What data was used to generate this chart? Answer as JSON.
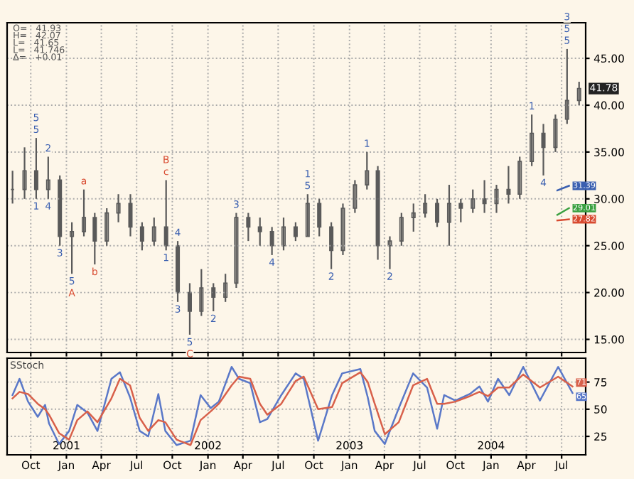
{
  "chart_data": [
    {
      "type": "candlestick",
      "color": "#5a5a5a",
      "grid": true,
      "tick_labels": "y",
      "xlim": [
        "2000-08-01",
        "2004-09-01"
      ],
      "ylim": [
        13.6,
        48.8
      ],
      "yticks": [
        {
          "value": 15,
          "label": "15.00"
        },
        {
          "value": 20,
          "label": "20.00"
        },
        {
          "value": 25,
          "label": "25.00"
        },
        {
          "value": 30,
          "label": "30.00"
        },
        {
          "value": 35,
          "label": "35.00"
        },
        {
          "value": 40,
          "label": "40.00"
        },
        {
          "value": 45,
          "label": "45.00"
        }
      ],
      "xticks": [
        {
          "value": "2000-10-01",
          "label": null
        },
        {
          "value": "2001-01-01",
          "label": null
        },
        {
          "value": "2001-04-01",
          "label": null
        },
        {
          "value": "2001-07-01",
          "label": null
        },
        {
          "value": "2001-10-01",
          "label": null
        },
        {
          "value": "2002-01-01",
          "label": null
        },
        {
          "value": "2002-04-01",
          "label": null
        },
        {
          "value": "2002-07-01",
          "label": null
        },
        {
          "value": "2002-10-01",
          "label": null
        },
        {
          "value": "2003-01-01",
          "label": null
        },
        {
          "value": "2003-04-01",
          "label": null
        },
        {
          "value": "2003-07-01",
          "label": null
        },
        {
          "value": "2003-10-01",
          "label": null
        },
        {
          "value": "2004-01-01",
          "label": null
        },
        {
          "value": "2004-04-01",
          "label": null
        },
        {
          "value": "2004-07-01",
          "label": null
        }
      ],
      "x": [
        "2000-08-15",
        "2000-09-15",
        "2000-10-15",
        "2000-11-15",
        "2000-12-15",
        "2001-01-15",
        "2001-02-15",
        "2001-03-15",
        "2001-04-15",
        "2001-05-15",
        "2001-06-15",
        "2001-07-15",
        "2001-08-15",
        "2001-09-15",
        "2001-10-15",
        "2001-11-15",
        "2001-12-15",
        "2002-01-15",
        "2002-02-15",
        "2002-03-15",
        "2002-04-15",
        "2002-05-15",
        "2002-06-15",
        "2002-07-15",
        "2002-08-15",
        "2002-09-15",
        "2002-10-15",
        "2002-11-15",
        "2002-12-15",
        "2003-01-15",
        "2003-02-15",
        "2003-03-15",
        "2003-04-15",
        "2003-05-15",
        "2003-06-15",
        "2003-07-15",
        "2003-08-15",
        "2003-09-15",
        "2003-10-15",
        "2003-11-15",
        "2003-12-15",
        "2004-01-15",
        "2004-02-15",
        "2004-03-15",
        "2004-04-15",
        "2004-05-15",
        "2004-06-15",
        "2004-07-15",
        "2004-08-15"
      ],
      "ohlc": [
        [
          31,
          33,
          29.5,
          31
        ],
        [
          31,
          35.5,
          30,
          33
        ],
        [
          33,
          36.5,
          30,
          31
        ],
        [
          31,
          34.5,
          30,
          32
        ],
        [
          32,
          32.5,
          25,
          26
        ],
        [
          26,
          27.5,
          22,
          26.5
        ],
        [
          26.5,
          31,
          26,
          28
        ],
        [
          28,
          28.5,
          23,
          25.5
        ],
        [
          25.5,
          29,
          25,
          28.5
        ],
        [
          28.5,
          30.5,
          27.5,
          29.5
        ],
        [
          29.5,
          30.5,
          26,
          27
        ],
        [
          27,
          27.5,
          24.5,
          25.5
        ],
        [
          25.5,
          28,
          25,
          27
        ],
        [
          27,
          32,
          24.5,
          25
        ],
        [
          25,
          25.5,
          19,
          20
        ],
        [
          20,
          21,
          15.5,
          18
        ],
        [
          18,
          22.5,
          17.5,
          20.5
        ],
        [
          20.5,
          21,
          18,
          19.5
        ],
        [
          19.5,
          22,
          19,
          21
        ],
        [
          21,
          28.5,
          20.5,
          28
        ],
        [
          28,
          28.5,
          25.5,
          27
        ],
        [
          27,
          28,
          25,
          26.5
        ],
        [
          26.5,
          27,
          24,
          25
        ],
        [
          25,
          28,
          24.5,
          27
        ],
        [
          27,
          27.5,
          25.5,
          26
        ],
        [
          26,
          30.5,
          26,
          29.5
        ],
        [
          29.5,
          30,
          26,
          27
        ],
        [
          27,
          27.5,
          22.5,
          24.5
        ],
        [
          24.5,
          29.5,
          24,
          29
        ],
        [
          29,
          32,
          28.5,
          31.5
        ],
        [
          31.5,
          35,
          31,
          33
        ],
        [
          33,
          33.5,
          23.5,
          25
        ],
        [
          25,
          26,
          22.5,
          25.5
        ],
        [
          25.5,
          28.5,
          25,
          28
        ],
        [
          28,
          29.5,
          26.5,
          28.5
        ],
        [
          28.5,
          30.5,
          28,
          29.5
        ],
        [
          29.5,
          30,
          27,
          27.5
        ],
        [
          27.5,
          31.5,
          25,
          29.5
        ],
        [
          29.5,
          30,
          27.5,
          29
        ],
        [
          29,
          31,
          28.5,
          30
        ],
        [
          30,
          32,
          28.5,
          29.5
        ],
        [
          29.5,
          31.5,
          28.5,
          31
        ],
        [
          31,
          33.5,
          29.5,
          30.5
        ],
        [
          30.5,
          34.5,
          30,
          34
        ],
        [
          34,
          39,
          33.5,
          37
        ],
        [
          37,
          38,
          32.5,
          35.5
        ],
        [
          35.5,
          39,
          35,
          38.5
        ],
        [
          38.5,
          46,
          38,
          40.5
        ],
        [
          40.5,
          42.5,
          40,
          41.78
        ]
      ],
      "value_labels": [
        null,
        null,
        null,
        null,
        null,
        null,
        null,
        null,
        null,
        null,
        null,
        null,
        null,
        null,
        null,
        null,
        null,
        null,
        null,
        null,
        null,
        null,
        null,
        null,
        null,
        null,
        null,
        null,
        null,
        null,
        null,
        null,
        null,
        null,
        null,
        null,
        null,
        null,
        null,
        null,
        null,
        null,
        null,
        null,
        null,
        null,
        null,
        null,
        "41.78"
      ],
      "series": [
        {
          "type": "line",
          "color": "#3a5fb0",
          "x": [
            "2004-06-20",
            "2004-07-20"
          ],
          "values": [
            30.9,
            31.39
          ],
          "value_labels": [
            null,
            "31.39"
          ]
        },
        {
          "type": "line",
          "color": "#3aa040",
          "x": [
            "2004-06-20",
            "2004-07-20"
          ],
          "values": [
            28.3,
            29.01
          ],
          "value_labels": [
            null,
            "29.01"
          ]
        },
        {
          "type": "line",
          "color": "#d84a30",
          "x": [
            "2004-06-20",
            "2004-07-20"
          ],
          "values": [
            27.7,
            27.82
          ],
          "value_labels": [
            null,
            "27.82"
          ]
        }
      ],
      "annotations": [
        "O=   41.93",
        "H=   42.07",
        "L=   41.65",
        "L=   41.746",
        "Δ=   +0.01",
        {
          "text": "5",
          "x": "2000-10-15",
          "y": 36.5
        },
        {
          "text": "5",
          "x": "2000-10-15",
          "y": 36.5
        },
        {
          "text": "1",
          "x": "2000-10-15",
          "y": 30
        },
        {
          "text": "2",
          "x": "2000-11-15",
          "y": 34.5
        },
        {
          "text": "4",
          "x": "2000-11-15",
          "y": 30
        },
        {
          "text": "3",
          "x": "2000-12-15",
          "y": 25
        },
        {
          "text": "5",
          "x": "2001-01-15",
          "y": 22
        },
        {
          "text": "A",
          "x": "2001-01-15",
          "y": 22
        },
        {
          "text": "a",
          "x": "2001-02-15",
          "y": 31
        },
        {
          "text": "b",
          "x": "2001-03-15",
          "y": 23
        },
        {
          "text": "c",
          "x": "2001-09-15",
          "y": 32
        },
        {
          "text": "B",
          "x": "2001-09-15",
          "y": 32
        },
        {
          "text": "1",
          "x": "2001-09-15",
          "y": 24.5
        },
        {
          "text": "4",
          "x": "2001-10-15",
          "y": 25.5
        },
        {
          "text": "3",
          "x": "2001-10-15",
          "y": 19
        },
        {
          "text": "5",
          "x": "2001-11-15",
          "y": 15.5
        },
        {
          "text": "C",
          "x": "2001-11-15",
          "y": 15.5
        },
        {
          "text": "2",
          "x": "2002-01-15",
          "y": 18
        },
        {
          "text": "3",
          "x": "2002-03-15",
          "y": 28.5
        },
        {
          "text": "4",
          "x": "2002-06-15",
          "y": 24
        },
        {
          "text": "5",
          "x": "2002-09-15",
          "y": 30.5
        },
        {
          "text": "1",
          "x": "2002-09-15",
          "y": 30.5
        },
        {
          "text": "2",
          "x": "2002-11-15",
          "y": 22.5
        },
        {
          "text": "1",
          "x": "2003-02-15",
          "y": 35
        },
        {
          "text": "2",
          "x": "2003-04-15",
          "y": 22.5
        },
        {
          "text": "1",
          "x": "2004-04-15",
          "y": 39
        },
        {
          "text": "4",
          "x": "2004-05-15",
          "y": 32.5
        },
        {
          "text": "5",
          "x": "2004-07-15",
          "y": 46
        },
        {
          "text": "5",
          "x": "2004-07-15",
          "y": 46
        },
        {
          "text": "3",
          "x": "2004-07-15",
          "y": 46
        }
      ]
    },
    {
      "type": "line",
      "title": "SStoch",
      "grid": true,
      "xlim": [
        "2000-08-01",
        "2004-09-01"
      ],
      "ylim": [
        8,
        97
      ],
      "yticks": [
        25,
        50,
        75
      ],
      "xticks": [
        {
          "value": "2000-10-01",
          "label": "Oct"
        },
        {
          "value": "2001-01-01",
          "label": "Jan"
        },
        {
          "value": "2001-04-01",
          "label": "Apr"
        },
        {
          "value": "2001-07-01",
          "label": "Jul"
        },
        {
          "value": "2001-10-01",
          "label": "Oct"
        },
        {
          "value": "2002-01-01",
          "label": "Jan"
        },
        {
          "value": "2002-04-01",
          "label": "Apr"
        },
        {
          "value": "2002-07-01",
          "label": "Jul"
        },
        {
          "value": "2002-10-01",
          "label": "Oct"
        },
        {
          "value": "2003-01-01",
          "label": "Jan"
        },
        {
          "value": "2003-04-01",
          "label": "Apr"
        },
        {
          "value": "2003-07-01",
          "label": "Jul"
        },
        {
          "value": "2003-10-01",
          "label": "Oct"
        },
        {
          "value": "2004-01-01",
          "label": "Jan"
        },
        {
          "value": "2004-04-01",
          "label": "Apr"
        },
        {
          "value": "2004-07-01",
          "label": "Jul"
        }
      ],
      "x2lim": [
        "2000-08-01",
        "2004-09-01"
      ],
      "x2ticks": [
        {
          "value": "2001-01-01",
          "label": "2001"
        },
        {
          "value": "2002-01-01",
          "label": "2002"
        },
        {
          "value": "2003-01-01",
          "label": "2003"
        },
        {
          "value": "2004-01-01",
          "label": "2004"
        }
      ],
      "x": [
        "2000-08-15",
        "2000-09-02",
        "2000-09-24",
        "2000-10-19",
        "2000-11-07",
        "2000-11-17",
        "2000-12-13",
        "2001-01-08",
        "2001-01-29",
        "2001-02-24",
        "2001-03-22",
        "2001-04-27",
        "2001-05-19",
        "2001-06-14",
        "2001-07-09",
        "2001-07-31",
        "2001-08-26",
        "2001-09-13",
        "2001-10-12",
        "2001-11-17",
        "2001-12-13",
        "2002-01-08",
        "2002-01-29",
        "2002-03-03",
        "2002-03-22",
        "2002-04-20",
        "2002-05-15",
        "2002-06-03",
        "2002-07-09",
        "2002-08-15",
        "2002-09-05",
        "2002-10-12",
        "2002-11-17",
        "2002-12-13",
        "2003-01-29",
        "2003-02-17",
        "2003-03-07",
        "2003-04-02",
        "2003-05-08",
        "2003-06-14",
        "2003-07-20",
        "2003-08-15",
        "2003-09-02",
        "2003-10-01",
        "2003-11-07",
        "2003-12-02",
        "2003-12-24",
        "2004-01-19",
        "2004-02-17",
        "2004-03-24",
        "2004-05-06",
        "2004-06-22",
        "2004-07-29"
      ],
      "series": [
        {
          "color": "#5a78c8",
          "values": [
            63,
            78,
            57,
            43,
            54,
            37,
            18,
            30,
            54,
            47,
            30,
            78,
            84,
            61,
            30,
            25,
            64,
            30,
            17,
            21,
            63,
            51,
            57,
            89,
            78,
            74,
            38,
            41,
            63,
            83,
            78,
            21,
            63,
            83,
            87,
            61,
            30,
            18,
            51,
            83,
            70,
            32,
            63,
            58,
            64,
            71,
            57,
            78,
            63,
            89,
            58,
            89,
            65
          ],
          "value_labels": [
            null,
            null,
            null,
            null,
            null,
            null,
            null,
            null,
            null,
            null,
            null,
            null,
            null,
            null,
            null,
            null,
            null,
            null,
            null,
            null,
            null,
            null,
            null,
            null,
            null,
            null,
            null,
            null,
            null,
            null,
            null,
            null,
            null,
            null,
            null,
            null,
            null,
            null,
            null,
            null,
            null,
            null,
            null,
            null,
            null,
            null,
            null,
            null,
            null,
            null,
            null,
            null,
            "65"
          ]
        },
        {
          "color": "#d8604a",
          "values": [
            60,
            66,
            64,
            55,
            50,
            45,
            28,
            22,
            40,
            48,
            38,
            60,
            78,
            72,
            42,
            30,
            40,
            38,
            22,
            17,
            40,
            48,
            55,
            72,
            80,
            78,
            55,
            45,
            55,
            76,
            80,
            50,
            52,
            74,
            84,
            75,
            55,
            27,
            38,
            72,
            78,
            55,
            55,
            57,
            62,
            66,
            62,
            70,
            70,
            82,
            70,
            80,
            71
          ],
          "value_labels": [
            null,
            null,
            null,
            null,
            null,
            null,
            null,
            null,
            null,
            null,
            null,
            null,
            null,
            null,
            null,
            null,
            null,
            null,
            null,
            null,
            null,
            null,
            null,
            null,
            null,
            null,
            null,
            null,
            null,
            null,
            null,
            null,
            null,
            null,
            null,
            null,
            null,
            null,
            null,
            null,
            null,
            null,
            null,
            null,
            null,
            null,
            null,
            null,
            null,
            null,
            null,
            null,
            "71"
          ]
        }
      ]
    }
  ]
}
